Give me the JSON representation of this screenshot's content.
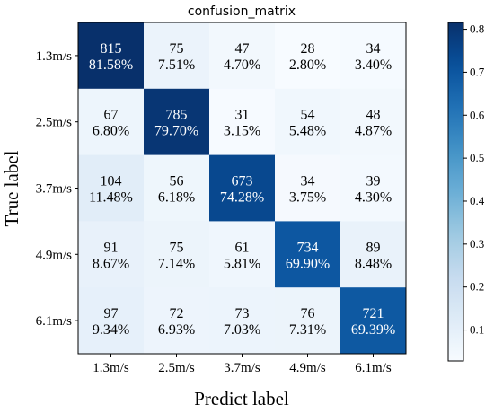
{
  "chart_data": {
    "type": "heatmap",
    "title": "confusion_matrix",
    "xlabel": "Predict label",
    "ylabel": "True label",
    "x_categories": [
      "1.3m/s",
      "2.5m/s",
      "3.7m/s",
      "4.9m/s",
      "6.1m/s"
    ],
    "y_categories": [
      "1.3m/s",
      "2.5m/s",
      "3.7m/s",
      "4.9m/s",
      "6.1m/s"
    ],
    "counts": [
      [
        815,
        75,
        47,
        28,
        34
      ],
      [
        67,
        785,
        31,
        54,
        48
      ],
      [
        104,
        56,
        673,
        34,
        39
      ],
      [
        91,
        75,
        61,
        734,
        89
      ],
      [
        97,
        72,
        73,
        76,
        721
      ]
    ],
    "percentages": [
      [
        "81.58%",
        "7.51%",
        "4.70%",
        "2.80%",
        "3.40%"
      ],
      [
        "6.80%",
        "79.70%",
        "3.15%",
        "5.48%",
        "4.87%"
      ],
      [
        "11.48%",
        "6.18%",
        "74.28%",
        "3.75%",
        "4.30%"
      ],
      [
        "8.67%",
        "7.14%",
        "5.81%",
        "69.90%",
        "8.48%"
      ],
      [
        "9.34%",
        "6.93%",
        "7.03%",
        "7.31%",
        "69.39%"
      ]
    ],
    "values": [
      [
        0.8158,
        0.0751,
        0.047,
        0.028,
        0.034
      ],
      [
        0.068,
        0.797,
        0.0315,
        0.0548,
        0.0487
      ],
      [
        0.1148,
        0.0618,
        0.7428,
        0.0375,
        0.043
      ],
      [
        0.0867,
        0.0714,
        0.0581,
        0.699,
        0.0848
      ],
      [
        0.0934,
        0.0693,
        0.0703,
        0.0731,
        0.6939
      ]
    ],
    "colorbar": {
      "min": 0.028,
      "max": 0.8158,
      "ticks": [
        "0.1",
        "0.2",
        "0.3",
        "0.4",
        "0.5",
        "0.6",
        "0.7",
        "0.8"
      ],
      "colormap": "Blues"
    },
    "grid": false,
    "legend": "none"
  }
}
